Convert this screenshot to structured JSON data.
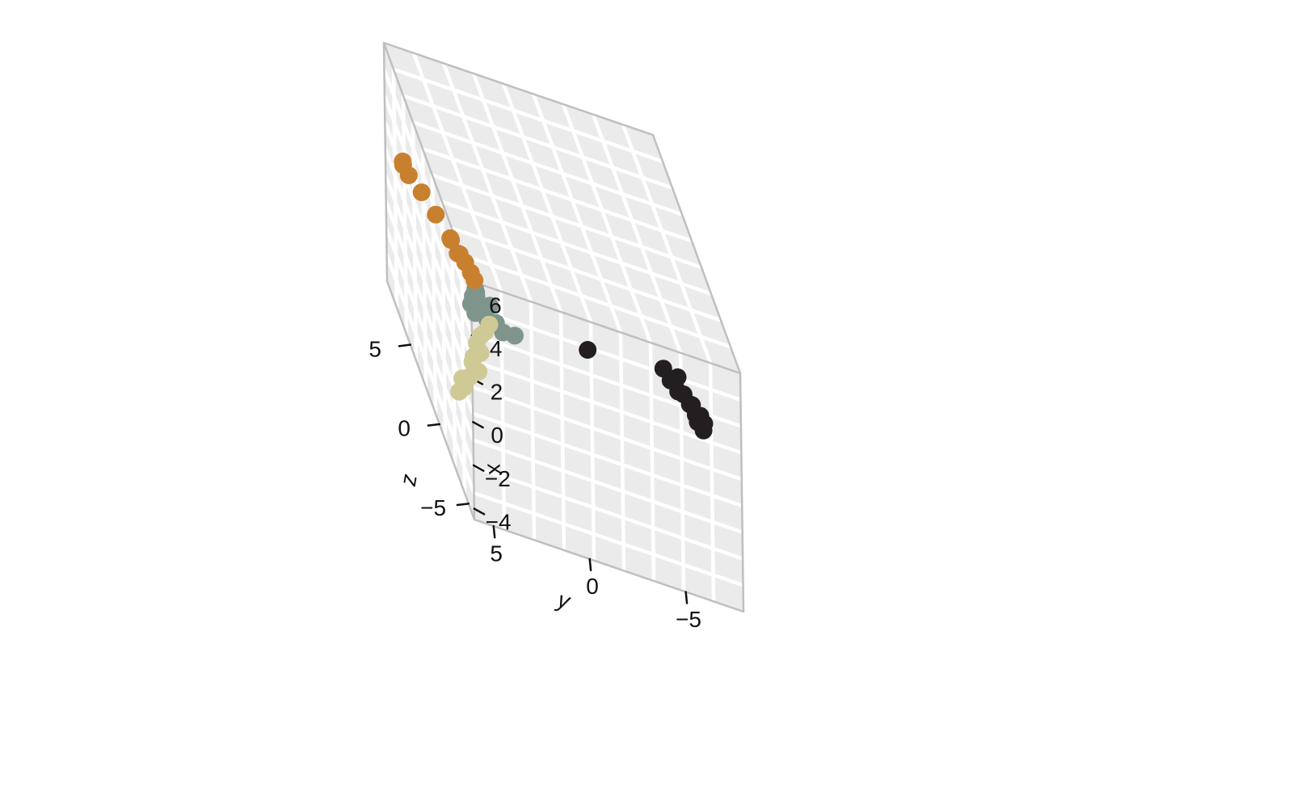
{
  "chart_data": {
    "type": "scatter",
    "projection": "3d",
    "title": "",
    "axes": {
      "x": {
        "label": "x",
        "ticks": [
          "-4",
          "-2",
          "0",
          "2",
          "4",
          "6"
        ],
        "range": [
          -4.5,
          6.5
        ]
      },
      "y": {
        "label": "y",
        "ticks": [
          "-5",
          "0",
          "5"
        ],
        "range": [
          -8,
          6
        ]
      },
      "z": {
        "label": "z",
        "ticks": [
          "-5",
          "0",
          "5"
        ],
        "range": [
          -6,
          9
        ]
      }
    },
    "grid": true,
    "legend": "none",
    "colors": {
      "panel": "#ebebeb",
      "grid": "#ffffff",
      "frame": "#bfbfbf",
      "tick": "#111111"
    },
    "series": [
      {
        "color": "#c8802f",
        "points": [
          [
            1.3,
            5.1,
            9.0
          ],
          [
            1.4,
            5.2,
            8.6
          ],
          [
            1.2,
            5.0,
            8.3
          ],
          [
            1.2,
            4.6,
            7.4
          ],
          [
            1.1,
            4.2,
            6.3
          ],
          [
            1.0,
            3.8,
            5.0
          ],
          [
            1.2,
            3.9,
            4.8
          ],
          [
            0.8,
            3.5,
            4.5
          ],
          [
            1.0,
            3.7,
            4.2
          ],
          [
            0.9,
            3.4,
            3.9
          ],
          [
            0.7,
            3.2,
            3.6
          ],
          [
            0.6,
            3.1,
            3.3
          ]
        ]
      },
      {
        "color": "#7f958c",
        "points": [
          [
            1.0,
            4.0,
            0.9
          ],
          [
            1.4,
            3.9,
            0.9
          ],
          [
            1.8,
            3.8,
            0.8
          ],
          [
            1.6,
            3.8,
            0.6
          ],
          [
            1.2,
            3.9,
            0.6
          ],
          [
            2.0,
            3.9,
            0.3
          ],
          [
            1.6,
            3.2,
            0.3
          ],
          [
            0.9,
            3.9,
            0.5
          ],
          [
            0.6,
            3.2,
            0.8
          ],
          [
            0.7,
            2.8,
            0.6
          ],
          [
            0.5,
            2.5,
            0.4
          ],
          [
            0.8,
            2.0,
            0.0
          ]
        ]
      },
      {
        "color": "#cfc996",
        "points": [
          [
            -3.0,
            4.8,
            0.5
          ],
          [
            -2.6,
            4.6,
            0.3
          ],
          [
            -2.4,
            4.6,
            0.6
          ],
          [
            -2.2,
            4.2,
            0.6
          ],
          [
            -1.7,
            3.8,
            0.4
          ],
          [
            -1.6,
            4.0,
            0.8
          ],
          [
            -1.4,
            3.9,
            0.9
          ],
          [
            -1.0,
            3.6,
            0.7
          ],
          [
            -0.8,
            3.7,
            1.0
          ],
          [
            -0.4,
            3.5,
            1.0
          ],
          [
            -0.1,
            3.3,
            0.9
          ],
          [
            0.2,
            3.0,
            1.1
          ]
        ]
      },
      {
        "color": "#231f20",
        "points": [
          [
            1.3,
            -1.8,
            0.0
          ],
          [
            1.5,
            -5.8,
            0.2
          ],
          [
            1.0,
            -6.2,
            0.3
          ],
          [
            1.2,
            -6.6,
            0.4
          ],
          [
            0.8,
            -6.5,
            0.0
          ],
          [
            0.5,
            -6.9,
            0.4
          ],
          [
            0.4,
            -7.1,
            0.0
          ],
          [
            0.2,
            -7.3,
            0.3
          ],
          [
            0.0,
            -7.4,
            0.0
          ],
          [
            -0.1,
            -7.7,
            0.2
          ],
          [
            -0.3,
            -7.5,
            0.0
          ],
          [
            -0.4,
            -7.9,
            0.2
          ],
          [
            -0.6,
            -7.8,
            0.0
          ]
        ]
      }
    ]
  }
}
